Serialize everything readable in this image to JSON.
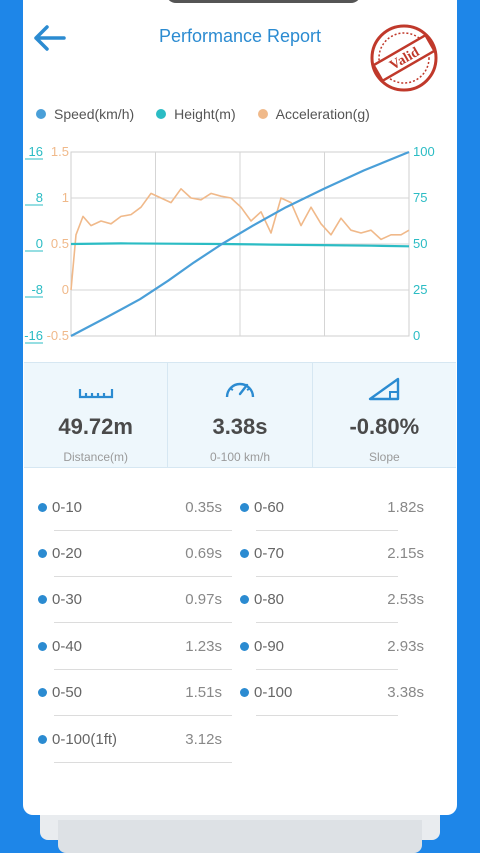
{
  "header": {
    "title": "Performance Report",
    "badge": "Valid"
  },
  "legend": [
    {
      "label": "Speed(km/h)",
      "color": "#4a9fd8"
    },
    {
      "label": "Height(m)",
      "color": "#2bbcc4"
    },
    {
      "label": "Acceleration(g)",
      "color": "#f0b98a"
    }
  ],
  "chart_data": {
    "type": "line",
    "axes": {
      "height_ticks": [
        "16",
        "8",
        "0",
        "-8",
        "-16"
      ],
      "accel_ticks": [
        "1.5",
        "1",
        "0.5",
        "0",
        "-0.5"
      ],
      "speed_ticks": [
        "100",
        "75",
        "50",
        "25",
        "0"
      ]
    },
    "series": [
      {
        "name": "Speed(km/h)",
        "color": "#4a9fd8",
        "x": [
          0,
          0.35,
          0.69,
          0.97,
          1.23,
          1.51,
          1.82,
          2.15,
          2.53,
          2.93,
          3.38
        ],
        "y": [
          0,
          10,
          20,
          30,
          40,
          50,
          60,
          70,
          80,
          90,
          100
        ],
        "ylim": [
          0,
          100
        ]
      },
      {
        "name": "Height(m)",
        "color": "#2bbcc4",
        "x": [
          0,
          0.5,
          1.0,
          1.5,
          2.0,
          2.5,
          3.0,
          3.38
        ],
        "y": [
          0,
          0.1,
          0.05,
          0.0,
          -0.1,
          -0.2,
          -0.3,
          -0.4
        ],
        "ylim": [
          -16,
          16
        ]
      },
      {
        "name": "Acceleration(g)",
        "color": "#f0b98a",
        "x": [
          0,
          0.05,
          0.12,
          0.2,
          0.3,
          0.4,
          0.5,
          0.6,
          0.7,
          0.8,
          0.9,
          1.0,
          1.1,
          1.2,
          1.3,
          1.4,
          1.5,
          1.6,
          1.7,
          1.8,
          1.9,
          2.0,
          2.1,
          2.2,
          2.3,
          2.4,
          2.5,
          2.6,
          2.7,
          2.8,
          2.9,
          3.0,
          3.1,
          3.2,
          3.3,
          3.38
        ],
        "y": [
          0.0,
          0.6,
          0.8,
          0.7,
          0.75,
          0.72,
          0.8,
          0.82,
          0.9,
          1.05,
          1.0,
          0.95,
          1.1,
          1.0,
          0.98,
          1.05,
          1.02,
          1.0,
          0.9,
          0.75,
          0.85,
          0.62,
          1.0,
          0.95,
          0.7,
          0.9,
          0.72,
          0.6,
          0.78,
          0.65,
          0.62,
          0.65,
          0.55,
          0.6,
          0.6,
          0.65
        ],
        "ylim": [
          -0.5,
          1.5
        ]
      }
    ],
    "xlim": [
      0,
      3.38
    ],
    "grid": true
  },
  "stats": [
    {
      "value": "49.72m",
      "label": "Distance(m)",
      "icon": "ruler-icon"
    },
    {
      "value": "3.38s",
      "label": "0-100 km/h",
      "icon": "speedometer-icon"
    },
    {
      "value": "-0.80%",
      "label": "Slope",
      "icon": "slope-icon"
    }
  ],
  "splits": [
    {
      "name": "0-10",
      "time": "0.35s"
    },
    {
      "name": "0-20",
      "time": "0.69s"
    },
    {
      "name": "0-30",
      "time": "0.97s"
    },
    {
      "name": "0-40",
      "time": "1.23s"
    },
    {
      "name": "0-50",
      "time": "1.51s"
    },
    {
      "name": "0-100(1ft)",
      "time": "3.12s"
    },
    {
      "name": "0-60",
      "time": "1.82s"
    },
    {
      "name": "0-70",
      "time": "2.15s"
    },
    {
      "name": "0-80",
      "time": "2.53s"
    },
    {
      "name": "0-90",
      "time": "2.93s"
    },
    {
      "name": "0-100",
      "time": "3.38s"
    }
  ]
}
